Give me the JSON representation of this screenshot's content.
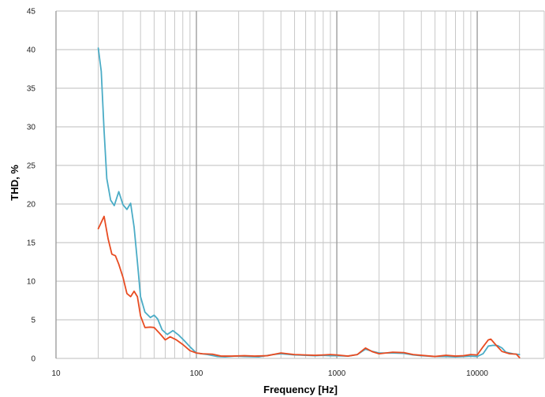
{
  "chart_data": {
    "type": "line",
    "title": "",
    "xlabel": "Frequency [Hz]",
    "ylabel": "THD, %",
    "x_scale": "log",
    "xlim": [
      10,
      30000
    ],
    "ylim": [
      0,
      45
    ],
    "x_tick_values": [
      10,
      100,
      1000,
      10000
    ],
    "x_tick_labels": [
      "10",
      "100",
      "1000",
      "10000"
    ],
    "y_tick_values": [
      0,
      5,
      10,
      15,
      20,
      25,
      30,
      35,
      40,
      45
    ],
    "y_tick_labels": [
      "0",
      "5",
      "10",
      "15",
      "20",
      "25",
      "30",
      "35",
      "40",
      "45"
    ],
    "grid": true,
    "legend": "none",
    "series": [
      {
        "color": "#4bacc6",
        "points": [
          [
            20,
            40.2
          ],
          [
            21,
            37.2
          ],
          [
            22,
            29.5
          ],
          [
            23,
            23.3
          ],
          [
            24.5,
            20.5
          ],
          [
            26,
            19.8
          ],
          [
            28,
            21.6
          ],
          [
            30,
            19.9
          ],
          [
            32,
            19.3
          ],
          [
            34,
            20.1
          ],
          [
            36,
            17.0
          ],
          [
            38,
            12.5
          ],
          [
            40,
            8.0
          ],
          [
            43,
            6.0
          ],
          [
            47,
            5.3
          ],
          [
            50,
            5.6
          ],
          [
            53,
            5.1
          ],
          [
            57,
            3.7
          ],
          [
            62,
            3.1
          ],
          [
            68,
            3.6
          ],
          [
            75,
            3.0
          ],
          [
            82,
            2.3
          ],
          [
            90,
            1.5
          ],
          [
            100,
            0.7
          ],
          [
            120,
            0.5
          ],
          [
            140,
            0.25
          ],
          [
            160,
            0.2
          ],
          [
            190,
            0.3
          ],
          [
            220,
            0.25
          ],
          [
            280,
            0.2
          ],
          [
            350,
            0.5
          ],
          [
            400,
            0.6
          ],
          [
            500,
            0.45
          ],
          [
            600,
            0.4
          ],
          [
            700,
            0.35
          ],
          [
            800,
            0.4
          ],
          [
            900,
            0.35
          ],
          [
            1000,
            0.35
          ],
          [
            1200,
            0.3
          ],
          [
            1400,
            0.5
          ],
          [
            1600,
            1.2
          ],
          [
            1800,
            0.9
          ],
          [
            2000,
            0.7
          ],
          [
            2500,
            0.7
          ],
          [
            3000,
            0.65
          ],
          [
            3500,
            0.45
          ],
          [
            4000,
            0.35
          ],
          [
            5000,
            0.25
          ],
          [
            6000,
            0.25
          ],
          [
            7000,
            0.2
          ],
          [
            8000,
            0.25
          ],
          [
            9000,
            0.3
          ],
          [
            10000,
            0.25
          ],
          [
            11000,
            0.6
          ],
          [
            12000,
            1.6
          ],
          [
            13000,
            1.7
          ],
          [
            14000,
            1.65
          ],
          [
            15000,
            1.35
          ],
          [
            16000,
            0.8
          ],
          [
            18000,
            0.6
          ],
          [
            20000,
            0.5
          ]
        ]
      },
      {
        "color": "#e84c22",
        "points": [
          [
            20,
            16.8
          ],
          [
            22,
            18.4
          ],
          [
            23.5,
            15.5
          ],
          [
            25,
            13.5
          ],
          [
            26.5,
            13.3
          ],
          [
            28,
            12.2
          ],
          [
            30,
            10.5
          ],
          [
            32,
            8.4
          ],
          [
            34,
            8.0
          ],
          [
            36,
            8.7
          ],
          [
            38,
            8.0
          ],
          [
            40,
            5.5
          ],
          [
            43,
            4.0
          ],
          [
            47,
            4.05
          ],
          [
            50,
            4.0
          ],
          [
            55,
            3.2
          ],
          [
            60,
            2.4
          ],
          [
            65,
            2.8
          ],
          [
            72,
            2.4
          ],
          [
            80,
            1.8
          ],
          [
            90,
            1.0
          ],
          [
            100,
            0.7
          ],
          [
            110,
            0.6
          ],
          [
            130,
            0.55
          ],
          [
            150,
            0.3
          ],
          [
            180,
            0.3
          ],
          [
            220,
            0.35
          ],
          [
            260,
            0.3
          ],
          [
            320,
            0.35
          ],
          [
            400,
            0.7
          ],
          [
            500,
            0.5
          ],
          [
            600,
            0.45
          ],
          [
            700,
            0.4
          ],
          [
            800,
            0.45
          ],
          [
            900,
            0.5
          ],
          [
            1000,
            0.45
          ],
          [
            1200,
            0.3
          ],
          [
            1400,
            0.5
          ],
          [
            1600,
            1.35
          ],
          [
            1800,
            0.85
          ],
          [
            2000,
            0.6
          ],
          [
            2500,
            0.8
          ],
          [
            3000,
            0.75
          ],
          [
            3500,
            0.5
          ],
          [
            4000,
            0.4
          ],
          [
            5000,
            0.25
          ],
          [
            6000,
            0.4
          ],
          [
            7000,
            0.3
          ],
          [
            8000,
            0.35
          ],
          [
            9000,
            0.5
          ],
          [
            10000,
            0.45
          ],
          [
            11000,
            1.5
          ],
          [
            12000,
            2.4
          ],
          [
            12500,
            2.5
          ],
          [
            13500,
            1.8
          ],
          [
            15000,
            0.9
          ],
          [
            17000,
            0.6
          ],
          [
            19000,
            0.55
          ],
          [
            20000,
            0.1
          ]
        ]
      }
    ]
  }
}
